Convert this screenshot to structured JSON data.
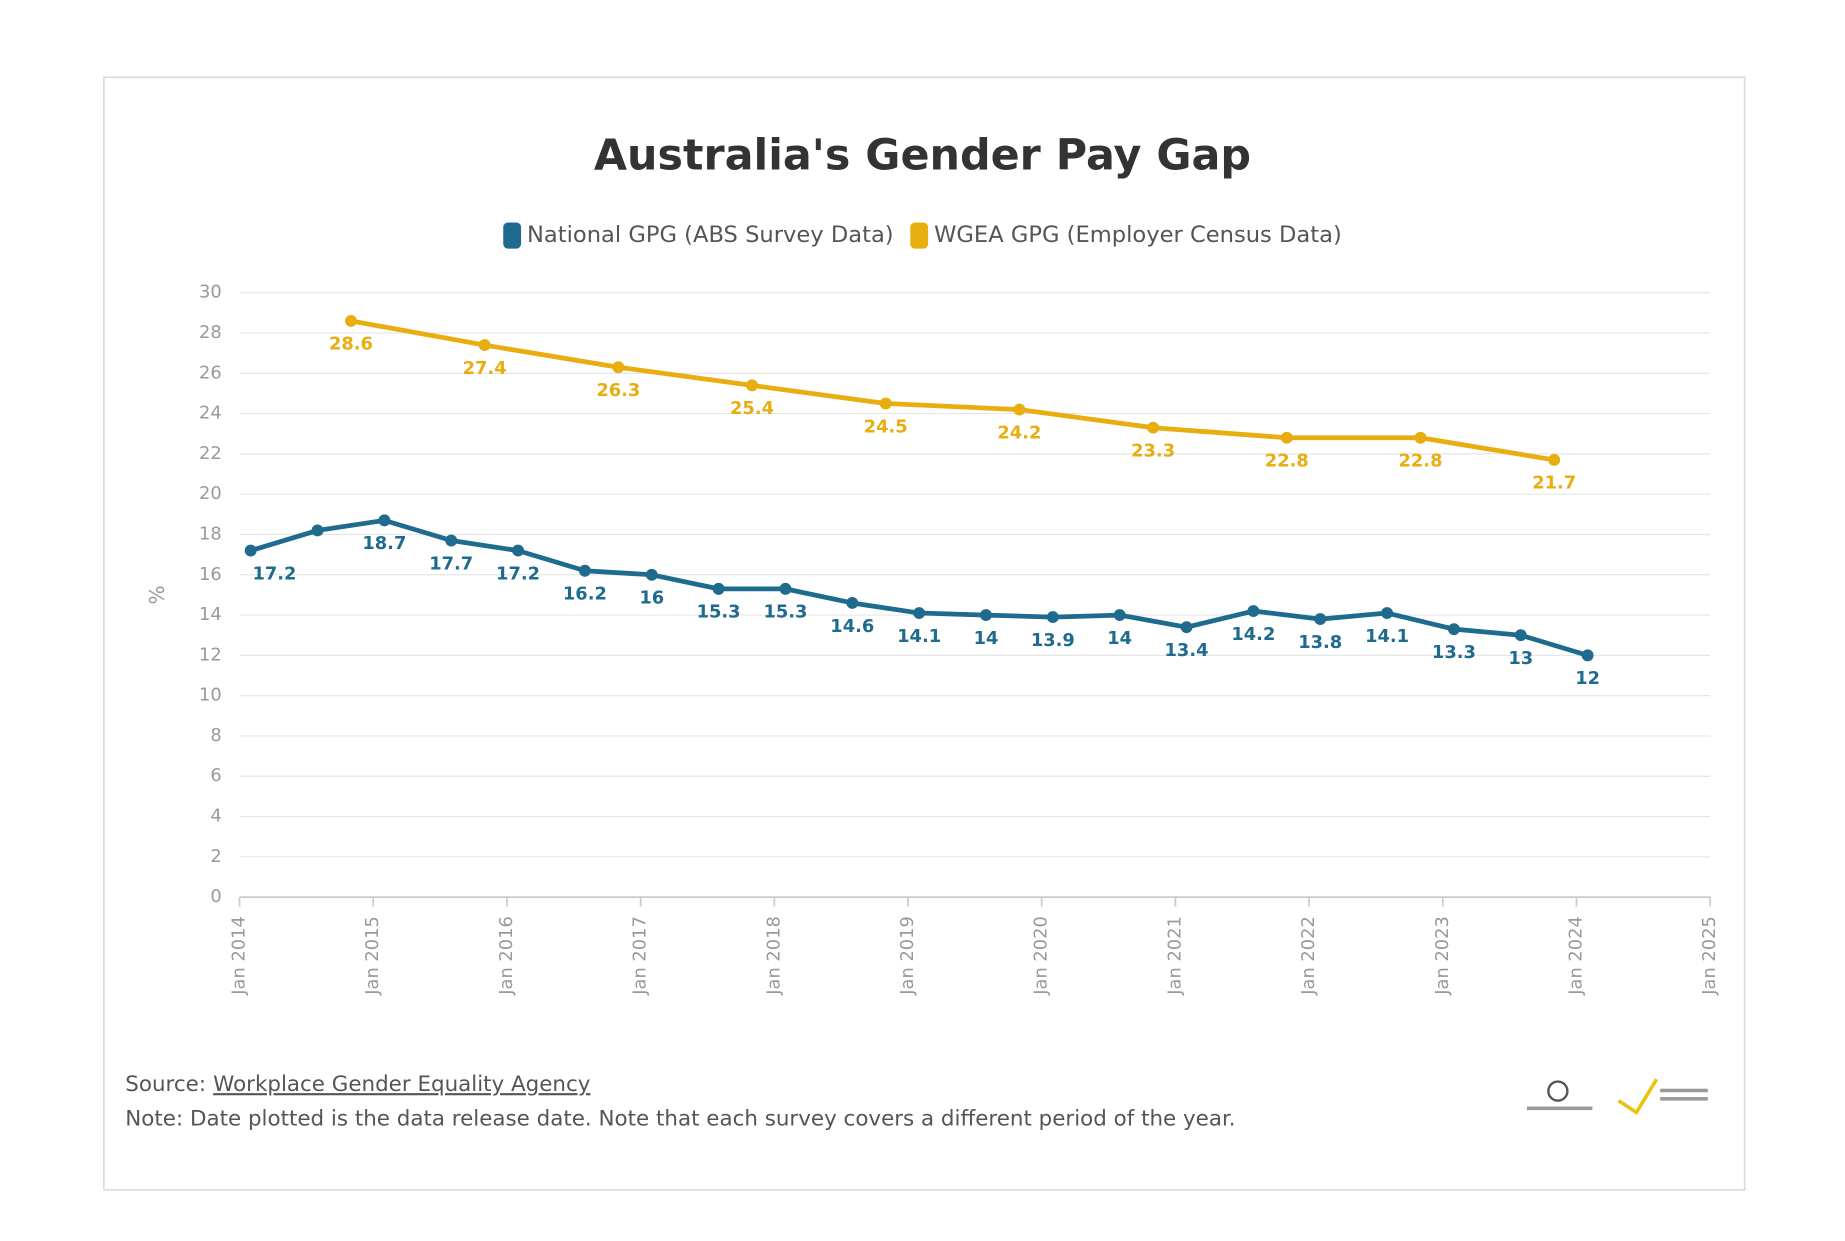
{
  "chart_data": {
    "type": "line",
    "title": "Australia's Gender Pay Gap",
    "y_label": "%",
    "xlim": [
      "2014-01",
      "2025-01"
    ],
    "xticks": [
      {
        "value": "2014-01",
        "label": "Jan 2014"
      },
      {
        "value": "2015-01",
        "label": "Jan 2015"
      },
      {
        "value": "2016-01",
        "label": "Jan 2016"
      },
      {
        "value": "2017-01",
        "label": "Jan 2017"
      },
      {
        "value": "2018-01",
        "label": "Jan 2018"
      },
      {
        "value": "2019-01",
        "label": "Jan 2019"
      },
      {
        "value": "2020-01",
        "label": "Jan 2020"
      },
      {
        "value": "2021-01",
        "label": "Jan 2021"
      },
      {
        "value": "2022-01",
        "label": "Jan 2022"
      },
      {
        "value": "2023-01",
        "label": "Jan 2023"
      },
      {
        "value": "2024-01",
        "label": "Jan 2024"
      },
      {
        "value": "2025-01",
        "label": "Jan 2025"
      }
    ],
    "ylim": [
      0,
      30
    ],
    "yticks": [
      0,
      2,
      4,
      6,
      8,
      10,
      12,
      14,
      16,
      18,
      20,
      22,
      24,
      26,
      28,
      30
    ],
    "grid": true,
    "legend": "top",
    "series": [
      {
        "name": "National GPG (ABS Survey Data)",
        "color": "#1f6b8e",
        "x": [
          "2014-02",
          "2014-08",
          "2015-02",
          "2015-08",
          "2016-02",
          "2016-08",
          "2017-02",
          "2017-08",
          "2018-02",
          "2018-08",
          "2019-02",
          "2019-08",
          "2020-02",
          "2020-08",
          "2021-02",
          "2021-08",
          "2022-02",
          "2022-08",
          "2023-02",
          "2023-08",
          "2024-02"
        ],
        "values": [
          17.2,
          18.2,
          18.7,
          17.7,
          17.2,
          16.2,
          16,
          15.3,
          15.3,
          14.6,
          14.1,
          14,
          13.9,
          14,
          13.4,
          14.2,
          13.8,
          14.1,
          13.3,
          13,
          12
        ],
        "value_labels": [
          "17.2",
          null,
          "18.7",
          "17.7",
          "17.2",
          "16.2",
          "16",
          "15.3",
          "15.3",
          "14.6",
          "14.1",
          "14",
          "13.9",
          "14",
          "13.4",
          "14.2",
          "13.8",
          "14.1",
          "13.3",
          "13",
          "12"
        ]
      },
      {
        "name": "WGEA GPG (Employer Census Data)",
        "color": "#e8ad0f",
        "x": [
          "2014-11",
          "2015-11",
          "2016-11",
          "2017-11",
          "2018-11",
          "2019-11",
          "2020-11",
          "2021-11",
          "2022-11",
          "2023-11"
        ],
        "values": [
          28.6,
          27.4,
          26.3,
          25.4,
          24.5,
          24.2,
          23.3,
          22.8,
          22.8,
          21.7
        ],
        "value_labels": [
          "28.6",
          "27.4",
          "26.3",
          "25.4",
          "24.5",
          "24.2",
          "23.3",
          "22.8",
          "22.8",
          "21.7"
        ]
      }
    ],
    "source_prefix": "Source:",
    "source_link": "Workplace Gender Equality Agency",
    "note": "Note: Date plotted is the data release date. Note that each survey covers a different period of the year."
  }
}
